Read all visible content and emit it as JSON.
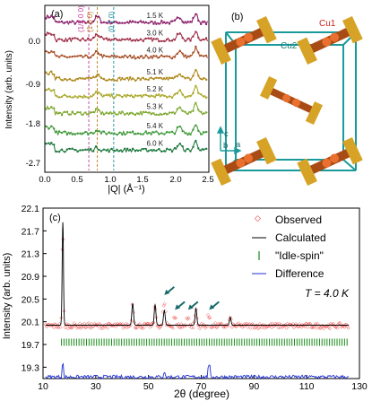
{
  "panel_a": {
    "label": "(a)",
    "ylabel": "Intensity (arb. units)",
    "xlabel": "|Q| (Å⁻¹)",
    "yticks": [
      "0.0",
      "-0.9",
      "-1.8",
      "-2.7"
    ],
    "xticks": [
      "0.0",
      "0.5",
      "1.0",
      "1.5",
      "2.0",
      "2.5"
    ],
    "peak_labels": [
      "(1/2 0 0)",
      "(1 0 0)",
      "(0 1 0)"
    ]
  },
  "panel_b": {
    "label": "(b)",
    "atom_labels": [
      "Cu1",
      "Cu2"
    ],
    "axis_labels": [
      "c",
      "b",
      "a"
    ]
  },
  "panel_c": {
    "label": "(c)",
    "ylabel": "Intensity (arb. units)",
    "xlabel": "2θ (degree)",
    "legend": [
      "Observed",
      "Calculated",
      "\"Idle-spin\"",
      "Difference"
    ],
    "temperature": "T = 4.0 K",
    "colors": {
      "observed": "#e8201f",
      "calculated": "#000000",
      "ticks": "#1a8a1a",
      "difference": "#1f2fd6"
    }
  },
  "chart_data": [
    {
      "type": "line",
      "xlabel": "|Q| (Å⁻¹)",
      "ylabel": "Intensity (arb. units)",
      "xlim": [
        0.0,
        2.5
      ],
      "ylim": [
        -2.9,
        0.5
      ],
      "series": [
        {
          "name": "1.5 K",
          "offset": 0.15,
          "color": "#8c1f6b"
        },
        {
          "name": "3.0 K",
          "offset": -0.2,
          "color": "#a0304a"
        },
        {
          "name": "4.0 K",
          "offset": -0.55,
          "color": "#a8502a"
        },
        {
          "name": "5.1 K",
          "offset": -1.0,
          "color": "#b08a1e"
        },
        {
          "name": "5.2 K",
          "offset": -1.35,
          "color": "#a9a82a"
        },
        {
          "name": "5.3 K",
          "offset": -1.7,
          "color": "#7ea830"
        },
        {
          "name": "5.4 K",
          "offset": -2.1,
          "color": "#3e9a3a"
        },
        {
          "name": "6.0 K",
          "offset": -2.45,
          "color": "#1e7a3e"
        }
      ],
      "vertical_lines": [
        0.67,
        0.8,
        1.05
      ]
    },
    {
      "type": "line",
      "xlabel": "2θ (degree)",
      "ylabel": "Intensity (arb. units)",
      "xlim": [
        10,
        130
      ],
      "ylim": [
        19.1,
        22.1
      ],
      "xticks": [
        10,
        30,
        50,
        70,
        90,
        110,
        130
      ],
      "yticks": [
        19.3,
        19.7,
        20.1,
        20.5,
        20.9,
        21.3,
        21.7,
        22.1
      ],
      "series": [
        {
          "name": "Observed",
          "baseline": 20.04
        },
        {
          "name": "Calculated",
          "peaks": [
            [
              17.5,
              21.85
            ],
            [
              44,
              20.42
            ],
            [
              52.5,
              20.4
            ],
            [
              56,
              20.3
            ],
            [
              68,
              20.33
            ],
            [
              81,
              20.18
            ]
          ]
        },
        {
          "name": "\"Idle-spin\"",
          "baseline": 19.74
        },
        {
          "name": "Difference",
          "baseline": 19.13
        }
      ],
      "arrows_at": [
        56,
        60,
        65,
        73
      ]
    }
  ]
}
